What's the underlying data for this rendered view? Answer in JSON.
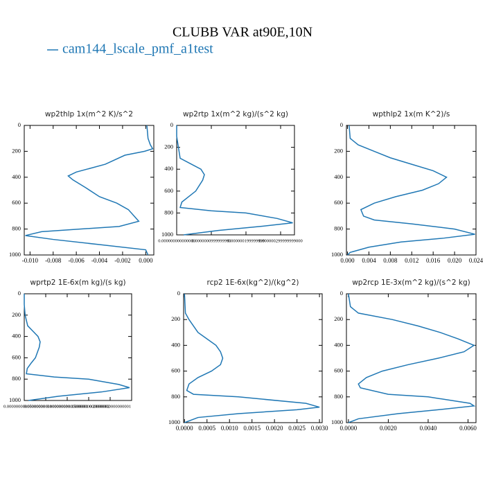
{
  "header": {
    "title": "CLUBB VAR at90E,10N",
    "legend": "cam144_lscale_pmf_a1test",
    "color": "#1f77b4"
  },
  "chart_data": [
    {
      "type": "line",
      "title": "wp2thlp   1x(m^2 K)/s^2",
      "color": "#1f77b4",
      "x": [
        0.0001,
        0.0002,
        0.0004,
        0.0006,
        -0.0001,
        -0.0018,
        -0.0035,
        -0.006,
        -0.0067,
        -0.0063,
        -0.0052,
        -0.004,
        -0.0025,
        -0.0015,
        -0.001,
        -0.0006,
        -0.0023,
        -0.009,
        -0.0104,
        -0.008,
        -0.004,
        0.0,
        0.0002
      ],
      "y": [
        0,
        100,
        150,
        180,
        200,
        230,
        300,
        360,
        390,
        420,
        480,
        550,
        600,
        650,
        700,
        740,
        780,
        820,
        850,
        880,
        920,
        960,
        1000
      ],
      "xlim": [
        -0.0105,
        0.0007
      ],
      "ylim": [
        1000,
        0
      ],
      "xticks": [
        {
          "value": -0.01,
          "label": "-0.010"
        },
        {
          "value": -0.008,
          "label": "-0.008"
        },
        {
          "value": -0.006,
          "label": "-0.006"
        },
        {
          "value": -0.004,
          "label": "-0.004"
        },
        {
          "value": -0.002,
          "label": "-0.002"
        },
        {
          "value": 0,
          "label": "0.000"
        }
      ],
      "yticks": [
        0,
        200,
        400,
        600,
        800,
        1000
      ]
    },
    {
      "type": "line",
      "title": "wp2rtp  1x(m^2 kg)/(s^2 kg)",
      "color": "#1f77b4",
      "x": [
        0,
        0,
        5e-09,
        1e-08,
        4e-08,
        7e-08,
        8e-08,
        7.5e-08,
        5.5e-08,
        3.5e-08,
        1.5e-08,
        1e-08,
        1e-07,
        2e-07,
        2.9e-07,
        3.35e-07,
        2.5e-07,
        1.2e-07,
        2e-08
      ],
      "y": [
        0,
        100,
        200,
        300,
        350,
        400,
        450,
        500,
        600,
        650,
        700,
        750,
        780,
        800,
        850,
        890,
        920,
        960,
        1000
      ],
      "xlim": [
        0,
        3.4e-07
      ],
      "ylim": [
        1000,
        0
      ],
      "xticks": [
        {
          "value": 0,
          "label": "0.000000000000000"
        },
        {
          "value": 1e-07,
          "label": "0.0000000999999990"
        },
        {
          "value": 2e-07,
          "label": "0.000000199999999"
        },
        {
          "value": 3e-07,
          "label": "0.000000299999999000"
        }
      ],
      "yticks": [
        0,
        200,
        400,
        600,
        800,
        1000
      ]
    },
    {
      "type": "line",
      "title": "wpthlp2   1x(m K^2)/s",
      "color": "#1f77b4",
      "x": [
        0.0003,
        0.0005,
        0.002,
        0.005,
        0.008,
        0.012,
        0.016,
        0.0185,
        0.017,
        0.014,
        0.009,
        0.005,
        0.0025,
        0.003,
        0.005,
        0.012,
        0.02,
        0.0238,
        0.018,
        0.01,
        0.004,
        0.0005,
        0
      ],
      "y": [
        0,
        100,
        150,
        200,
        250,
        300,
        350,
        400,
        450,
        500,
        550,
        600,
        650,
        700,
        730,
        760,
        800,
        840,
        870,
        900,
        940,
        980,
        1000
      ],
      "xlim": [
        -0.0002,
        0.024
      ],
      "ylim": [
        1000,
        0
      ],
      "xticks": [
        {
          "value": 0,
          "label": "0.000"
        },
        {
          "value": 0.004,
          "label": "0.004"
        },
        {
          "value": 0.008,
          "label": "0.008"
        },
        {
          "value": 0.012,
          "label": "0.012"
        },
        {
          "value": 0.016,
          "label": "0.016"
        },
        {
          "value": 0.02,
          "label": "0.020"
        },
        {
          "value": 0.024,
          "label": "0.024"
        }
      ],
      "yticks": [
        0,
        200,
        400,
        600,
        800,
        1000
      ]
    },
    {
      "type": "line",
      "title": "wprtp2   1E-6x(m kg)/(s kg)",
      "color": "#1f77b4",
      "x": [
        0,
        0,
        0.002,
        0.008,
        0.02,
        0.032,
        0.037,
        0.035,
        0.026,
        0.016,
        0.007,
        0.005,
        0.07,
        0.15,
        0.22,
        0.245,
        0.18,
        0.08,
        0.01
      ],
      "y": [
        0,
        100,
        200,
        300,
        350,
        400,
        450,
        500,
        600,
        650,
        700,
        750,
        780,
        800,
        850,
        880,
        920,
        960,
        1000
      ],
      "xlim": [
        0,
        0.25
      ],
      "ylim": [
        1000,
        0
      ],
      "xticks": [
        {
          "value": 0,
          "label": "0.00000000000000000"
        },
        {
          "value": 0.05,
          "label": "0.050000000000000003"
        },
        {
          "value": 0.1,
          "label": "0.10000000000000001"
        },
        {
          "value": 0.15,
          "label": "0.15000000000000002"
        },
        {
          "value": 0.2,
          "label": "0.20000000000000001"
        }
      ],
      "yticks": [
        0,
        200,
        400,
        600,
        800,
        1000
      ]
    },
    {
      "type": "line",
      "title": "rcp2   1E-6x(kg^2)/(kg^2)",
      "color": "#1f77b4",
      "x": [
        0,
        2e-05,
        0.0001,
        0.0003,
        0.0005,
        0.0007,
        0.0008,
        0.00085,
        0.0008,
        0.0006,
        0.0003,
        0.0001,
        5e-05,
        0.0002,
        0.0012,
        0.0027,
        0.003,
        0.0025,
        0.0012,
        0.0003,
        0
      ],
      "y": [
        0,
        150,
        200,
        300,
        350,
        400,
        450,
        500,
        550,
        600,
        650,
        700,
        750,
        780,
        800,
        850,
        880,
        900,
        930,
        960,
        1000
      ],
      "xlim": [
        -2e-05,
        0.00306
      ],
      "ylim": [
        1000,
        0
      ],
      "xticks": [
        {
          "value": 0,
          "label": "0.0000"
        },
        {
          "value": 0.0005,
          "label": "0.0005"
        },
        {
          "value": 0.001,
          "label": "0.0010"
        },
        {
          "value": 0.0015,
          "label": "0.0015"
        },
        {
          "value": 0.002,
          "label": "0.0020"
        },
        {
          "value": 0.0025,
          "label": "0.0025"
        },
        {
          "value": 0.003,
          "label": "0.0030"
        }
      ],
      "yticks": [
        0,
        200,
        400,
        600,
        800,
        1000
      ]
    },
    {
      "type": "line",
      "title": "wp2rcp   1E-3x(m^2 kg)/(s^2 kg)",
      "color": "#1f77b4",
      "x": [
        0,
        0.0001,
        0.0005,
        0.0022,
        0.0035,
        0.0046,
        0.0055,
        0.0063,
        0.0058,
        0.0045,
        0.003,
        0.0017,
        0.0009,
        0.0005,
        0.0006,
        0.002,
        0.004,
        0.0061,
        0.0063,
        0.0045,
        0.0025,
        0.0005,
        0
      ],
      "y": [
        0,
        100,
        150,
        200,
        250,
        300,
        350,
        400,
        450,
        500,
        550,
        600,
        650,
        700,
        730,
        780,
        800,
        850,
        870,
        900,
        930,
        970,
        1000
      ],
      "xlim": [
        -0.0001,
        0.0064
      ],
      "ylim": [
        1000,
        0
      ],
      "xticks": [
        {
          "value": 0,
          "label": "0.0000"
        },
        {
          "value": 0.002,
          "label": "0.0020"
        },
        {
          "value": 0.004,
          "label": "0.0040"
        },
        {
          "value": 0.006,
          "label": "0.0060"
        }
      ],
      "yticks": [
        0,
        200,
        400,
        600,
        800,
        1000
      ]
    }
  ]
}
